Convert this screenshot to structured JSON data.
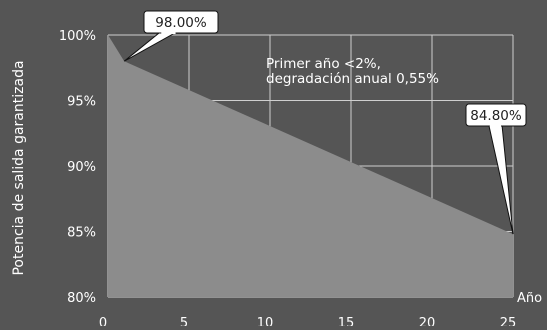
{
  "chart_data": {
    "type": "area",
    "title": "",
    "xlabel": "Año",
    "ylabel": "Potencia de salida garantizada",
    "xlim": [
      0,
      25
    ],
    "ylim": [
      80,
      100
    ],
    "x_ticks": [
      0,
      5,
      10,
      15,
      20,
      25
    ],
    "x_tick_labels": [
      "0",
      "5",
      "10",
      "15",
      "20",
      "25"
    ],
    "y_ticks": [
      80,
      85,
      90,
      95,
      100
    ],
    "y_tick_labels": [
      "80%",
      "85%",
      "90%",
      "95%",
      "100%"
    ],
    "grid": true,
    "series": [
      {
        "x": [
          0,
          1,
          25
        ],
        "y": [
          100,
          98,
          84.8
        ],
        "color": "#8c8c8c"
      }
    ],
    "annotations": [
      {
        "x": 1,
        "y": 98,
        "label": "98.00%"
      },
      {
        "x": 25,
        "y": 84.8,
        "label": "84.80%"
      }
    ],
    "note_lines": [
      "Primer año <2%,",
      "degradación anual 0,55%"
    ],
    "colors": {
      "background": "#555555",
      "area": "#8c8c8c",
      "grid": "#cfcfcf",
      "text": "#ffffff",
      "callout_fill": "#ffffff",
      "callout_text": "#222222"
    }
  }
}
